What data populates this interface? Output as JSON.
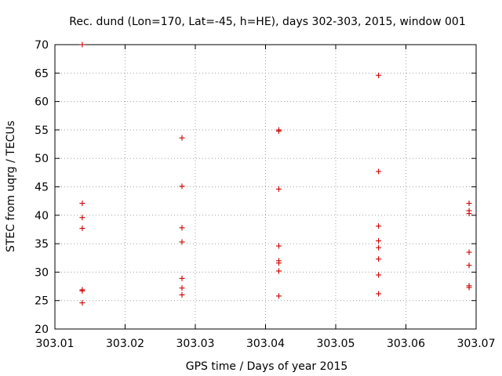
{
  "chart_data": {
    "type": "scatter",
    "title": "Rec. dund (Lon=170, Lat=-45, h=HE), days 302-303, 2015, window 001",
    "xlabel": "GPS time / Days of year 2015",
    "ylabel": "STEC from uqrg / TECUs",
    "xlim": [
      303.01,
      303.07
    ],
    "ylim": [
      20,
      70
    ],
    "grid": true,
    "marker": "plus",
    "point_color": "#cc0000",
    "xticks": [
      {
        "value": 303.01,
        "label": "303.01"
      },
      {
        "value": 303.02,
        "label": "303.02"
      },
      {
        "value": 303.03,
        "label": "303.03"
      },
      {
        "value": 303.04,
        "label": "303.04"
      },
      {
        "value": 303.05,
        "label": "303.05"
      },
      {
        "value": 303.06,
        "label": "303.06"
      },
      {
        "value": 303.07,
        "label": "303.07"
      }
    ],
    "yticks": [
      {
        "value": 20,
        "label": "20"
      },
      {
        "value": 25,
        "label": "25"
      },
      {
        "value": 30,
        "label": "30"
      },
      {
        "value": 35,
        "label": "35"
      },
      {
        "value": 40,
        "label": "40"
      },
      {
        "value": 45,
        "label": "45"
      },
      {
        "value": 50,
        "label": "50"
      },
      {
        "value": 55,
        "label": "55"
      },
      {
        "value": 60,
        "label": "60"
      },
      {
        "value": 65,
        "label": "65"
      },
      {
        "value": 70,
        "label": "70"
      }
    ],
    "points": [
      {
        "x": 303.0139,
        "y": 70.0
      },
      {
        "x": 303.0139,
        "y": 42.1
      },
      {
        "x": 303.0139,
        "y": 39.6
      },
      {
        "x": 303.0139,
        "y": 37.7
      },
      {
        "x": 303.0139,
        "y": 26.9
      },
      {
        "x": 303.0139,
        "y": 26.7
      },
      {
        "x": 303.0139,
        "y": 24.6
      },
      {
        "x": 303.0281,
        "y": 53.6
      },
      {
        "x": 303.0281,
        "y": 45.1
      },
      {
        "x": 303.0281,
        "y": 37.8
      },
      {
        "x": 303.0281,
        "y": 35.3
      },
      {
        "x": 303.0281,
        "y": 28.9
      },
      {
        "x": 303.0281,
        "y": 27.2
      },
      {
        "x": 303.0281,
        "y": 26.0
      },
      {
        "x": 303.0419,
        "y": 55.0
      },
      {
        "x": 303.0419,
        "y": 54.8
      },
      {
        "x": 303.0419,
        "y": 44.6
      },
      {
        "x": 303.0419,
        "y": 34.6
      },
      {
        "x": 303.0419,
        "y": 32.0
      },
      {
        "x": 303.0419,
        "y": 31.6
      },
      {
        "x": 303.0419,
        "y": 30.2
      },
      {
        "x": 303.0419,
        "y": 25.8
      },
      {
        "x": 303.0561,
        "y": 64.6
      },
      {
        "x": 303.0561,
        "y": 47.7
      },
      {
        "x": 303.0561,
        "y": 38.1
      },
      {
        "x": 303.0561,
        "y": 35.5
      },
      {
        "x": 303.0561,
        "y": 34.3
      },
      {
        "x": 303.0561,
        "y": 32.3
      },
      {
        "x": 303.0561,
        "y": 29.5
      },
      {
        "x": 303.0561,
        "y": 26.2
      },
      {
        "x": 303.069,
        "y": 42.1
      },
      {
        "x": 303.069,
        "y": 40.8
      },
      {
        "x": 303.069,
        "y": 40.3
      },
      {
        "x": 303.069,
        "y": 33.5
      },
      {
        "x": 303.069,
        "y": 31.2
      },
      {
        "x": 303.069,
        "y": 27.6
      },
      {
        "x": 303.069,
        "y": 27.3
      }
    ]
  }
}
